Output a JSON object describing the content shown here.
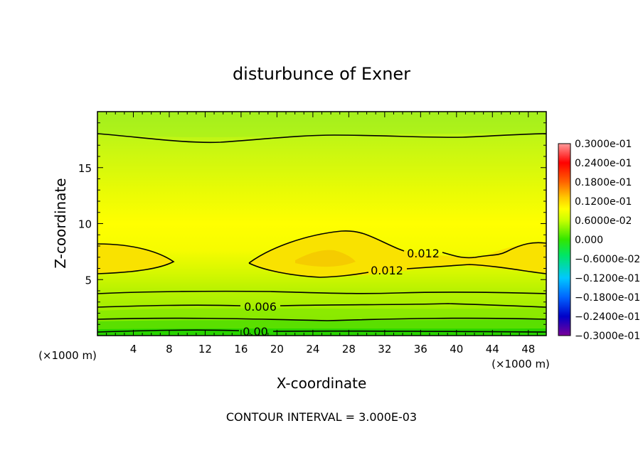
{
  "chart_data": {
    "type": "heatmap",
    "title": "disturbunce of Exner",
    "xlabel": "X-coordinate",
    "ylabel": "Z-coordinate",
    "x_unit_left": "(×1000 m)",
    "x_unit_right": "(×1000 m)",
    "xlim": [
      0,
      50
    ],
    "ylim": [
      0,
      20
    ],
    "x_ticks": [
      "4",
      "8",
      "12",
      "16",
      "20",
      "24",
      "28",
      "32",
      "36",
      "40",
      "44",
      "48"
    ],
    "y_ticks": [
      "5",
      "10",
      "15"
    ],
    "footnote": "CONTOUR INTERVAL = 3.000E-03",
    "colorbar": {
      "labels": [
        "0.3000e-01",
        "0.2400e-01",
        "0.1800e-01",
        "0.1200e-01",
        "0.6000e-02",
        "0.000",
        "−0.6000e-02",
        "−0.1200e-01",
        "−0.1800e-01",
        "−0.2400e-01",
        "−0.3000e-01"
      ],
      "range": [
        -0.03,
        0.03
      ],
      "colors": [
        "#7a0099",
        "#0000c8",
        "#0064ff",
        "#00c8ff",
        "#00e664",
        "#32e600",
        "#c8ff00",
        "#ffff00",
        "#ffc800",
        "#ff6400",
        "#ff0000",
        "#ff8c8c"
      ]
    },
    "contour_labels": [
      "0.012",
      "0.012",
      "0.006",
      "0.00"
    ],
    "contour_levels": [
      0.0,
      0.006,
      0.012
    ]
  }
}
